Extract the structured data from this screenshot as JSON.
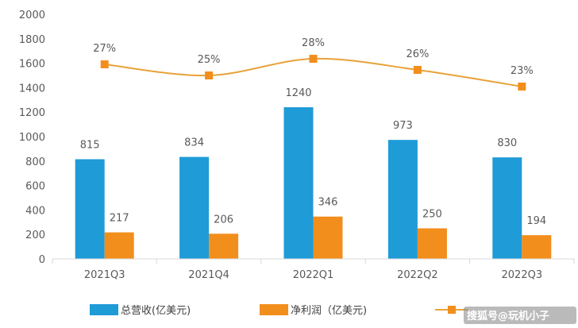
{
  "chart_data": {
    "type": "bar",
    "categories": [
      "2021Q3",
      "2021Q4",
      "2022Q1",
      "2022Q2",
      "2022Q3"
    ],
    "series": [
      {
        "name": "总营收(亿美元)",
        "type": "bar",
        "axis": "left",
        "color": "#1f9bd7",
        "values": [
          815,
          834,
          1240,
          973,
          830
        ],
        "labels": [
          "815",
          "834",
          "1240",
          "973",
          "830"
        ]
      },
      {
        "name": "净利润（亿美元)",
        "type": "bar",
        "axis": "left",
        "color": "#f28e1c",
        "values": [
          217,
          206,
          346,
          250,
          194
        ],
        "labels": [
          "217",
          "206",
          "346",
          "250",
          "194"
        ]
      },
      {
        "name": "",
        "type": "line",
        "axis": "none",
        "color": "#e8a23a",
        "marker": "square",
        "values": [
          27,
          25,
          28,
          26,
          23
        ],
        "labels": [
          "27%",
          "25%",
          "28%",
          "26%",
          "23%"
        ]
      }
    ],
    "yticks": [
      "0",
      "200",
      "400",
      "600",
      "800",
      "1000",
      "1200",
      "1400",
      "1600",
      "1800",
      "2000"
    ],
    "ylim": [
      0,
      2000
    ],
    "grid": false,
    "legend_position": "bottom",
    "title": "",
    "xlabel": "",
    "ylabel": ""
  },
  "watermark": "搜狐号@玩机小子"
}
